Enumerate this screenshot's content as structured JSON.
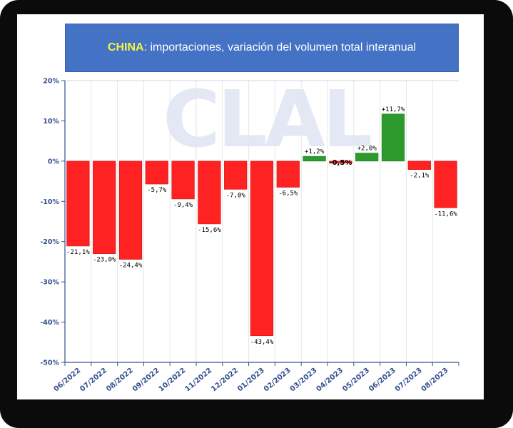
{
  "title": {
    "country": "CHINA",
    "rest": ": importaciones, variación del volumen total interanual"
  },
  "watermark": "CLAL",
  "colors": {
    "negative": "#ff2222",
    "positive": "#2e9a2e",
    "title_bg": "#4472c4",
    "title_country": "#f5f542",
    "tick_text": "#34508f"
  },
  "chart_data": {
    "type": "bar",
    "title": "CHINA: importaciones, variación del volumen total interanual",
    "categories": [
      "06/2022",
      "07/2022",
      "08/2022",
      "09/2022",
      "10/2022",
      "11/2022",
      "12/2022",
      "01/2023",
      "02/2023",
      "03/2023",
      "04/2023",
      "05/2023",
      "06/2023",
      "07/2023",
      "08/2023"
    ],
    "values": [
      -21.1,
      -23.0,
      -24.4,
      -5.7,
      -9.4,
      -15.6,
      -7.0,
      -43.4,
      -6.5,
      1.2,
      -0.5,
      2.0,
      11.7,
      -2.1,
      -11.6
    ],
    "labels": [
      "-21,1%",
      "-23,0%",
      "-24,4%",
      "-5,7%",
      "-9,4%",
      "-15,6%",
      "-7,0%",
      "-43,4%",
      "-6,5%",
      "+1,2%",
      "-0,5%",
      "+2,0%",
      "+11,7%",
      "-2,1%",
      "-11,6%"
    ],
    "ylim": [
      -50,
      20
    ],
    "yticks": [
      20,
      10,
      0,
      -10,
      -20,
      -30,
      -40,
      -50
    ],
    "ytick_labels": [
      "20%",
      "10%",
      "0%",
      "-10%",
      "-20%",
      "-30%",
      "-40%",
      "-50%"
    ],
    "xlabel": "",
    "ylabel": "",
    "grid": "vertical",
    "legend": "none"
  }
}
